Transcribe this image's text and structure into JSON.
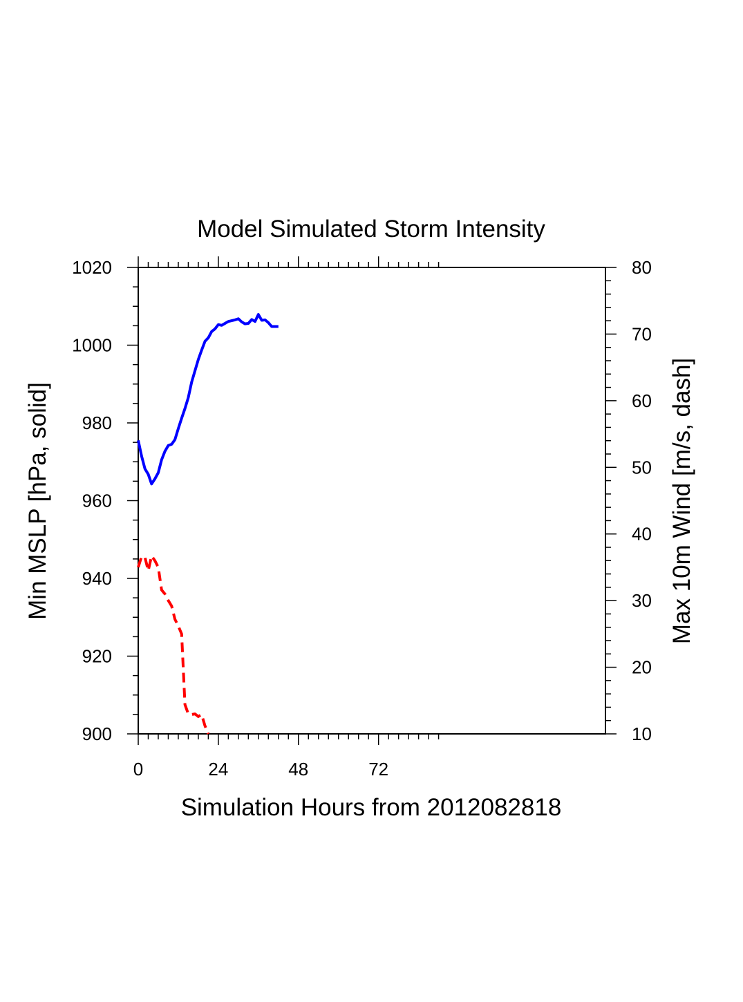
{
  "chart_data": {
    "type": "line",
    "title": "Model Simulated Storm Intensity",
    "xlabel": "Simulation Hours from 2012082818",
    "ylabel_left": "Min MSLP  [hPa, solid]",
    "ylabel_right": "Max 10m Wind  [m/s, dash]",
    "xlim": [
      0,
      140
    ],
    "ylim_left": [
      900,
      1020
    ],
    "ylim_right": [
      10,
      80
    ],
    "x_ticks": [
      0,
      24,
      48,
      72
    ],
    "y_left_ticks": [
      900,
      920,
      940,
      960,
      980,
      1000,
      1020
    ],
    "y_right_ticks": [
      10,
      20,
      30,
      40,
      50,
      60,
      70,
      80
    ],
    "grid": false,
    "series": [
      {
        "axis": "left",
        "style": "solid",
        "color": "#0000ff",
        "x": [
          0,
          1,
          2,
          3,
          4,
          5,
          6,
          7,
          8,
          9,
          10,
          11,
          12,
          13,
          14,
          15,
          16,
          17,
          18,
          19,
          20,
          21,
          22,
          23,
          24,
          25,
          26,
          27,
          28,
          29,
          30,
          31,
          32,
          33,
          34,
          35,
          36,
          37,
          38,
          39,
          40,
          41,
          42
        ],
        "y": [
          975.5,
          971.5,
          968.2,
          966.8,
          964.3,
          965.6,
          967.2,
          970.5,
          972.7,
          974.2,
          974.5,
          975.7,
          978.5,
          981.2,
          983.7,
          986.5,
          990.5,
          993.4,
          996.3,
          998.7,
          1001.0,
          1001.9,
          1003.5,
          1004.2,
          1005.3,
          1005.1,
          1005.6,
          1006.1,
          1006.3,
          1006.5,
          1006.8,
          1006.0,
          1005.5,
          1005.6,
          1006.6,
          1006.1,
          1007.9,
          1006.4,
          1006.5,
          1005.8,
          1004.8,
          1004.8,
          1004.8
        ]
      },
      {
        "axis": "right",
        "style": "dash",
        "color": "#ff0000",
        "x": [
          0,
          1,
          2,
          3,
          4,
          5,
          6,
          7,
          8,
          9,
          10,
          11,
          12,
          13,
          14,
          15,
          16,
          17,
          18,
          19,
          20,
          21
        ],
        "y": [
          35.0,
          36.6,
          36.5,
          34.5,
          36.7,
          36.0,
          35.0,
          31.6,
          31.0,
          30.0,
          29.2,
          27.2,
          26.2,
          25.0,
          14.4,
          13.0,
          12.9,
          13.0,
          12.6,
          12.9,
          11.2,
          10.0
        ]
      }
    ]
  }
}
